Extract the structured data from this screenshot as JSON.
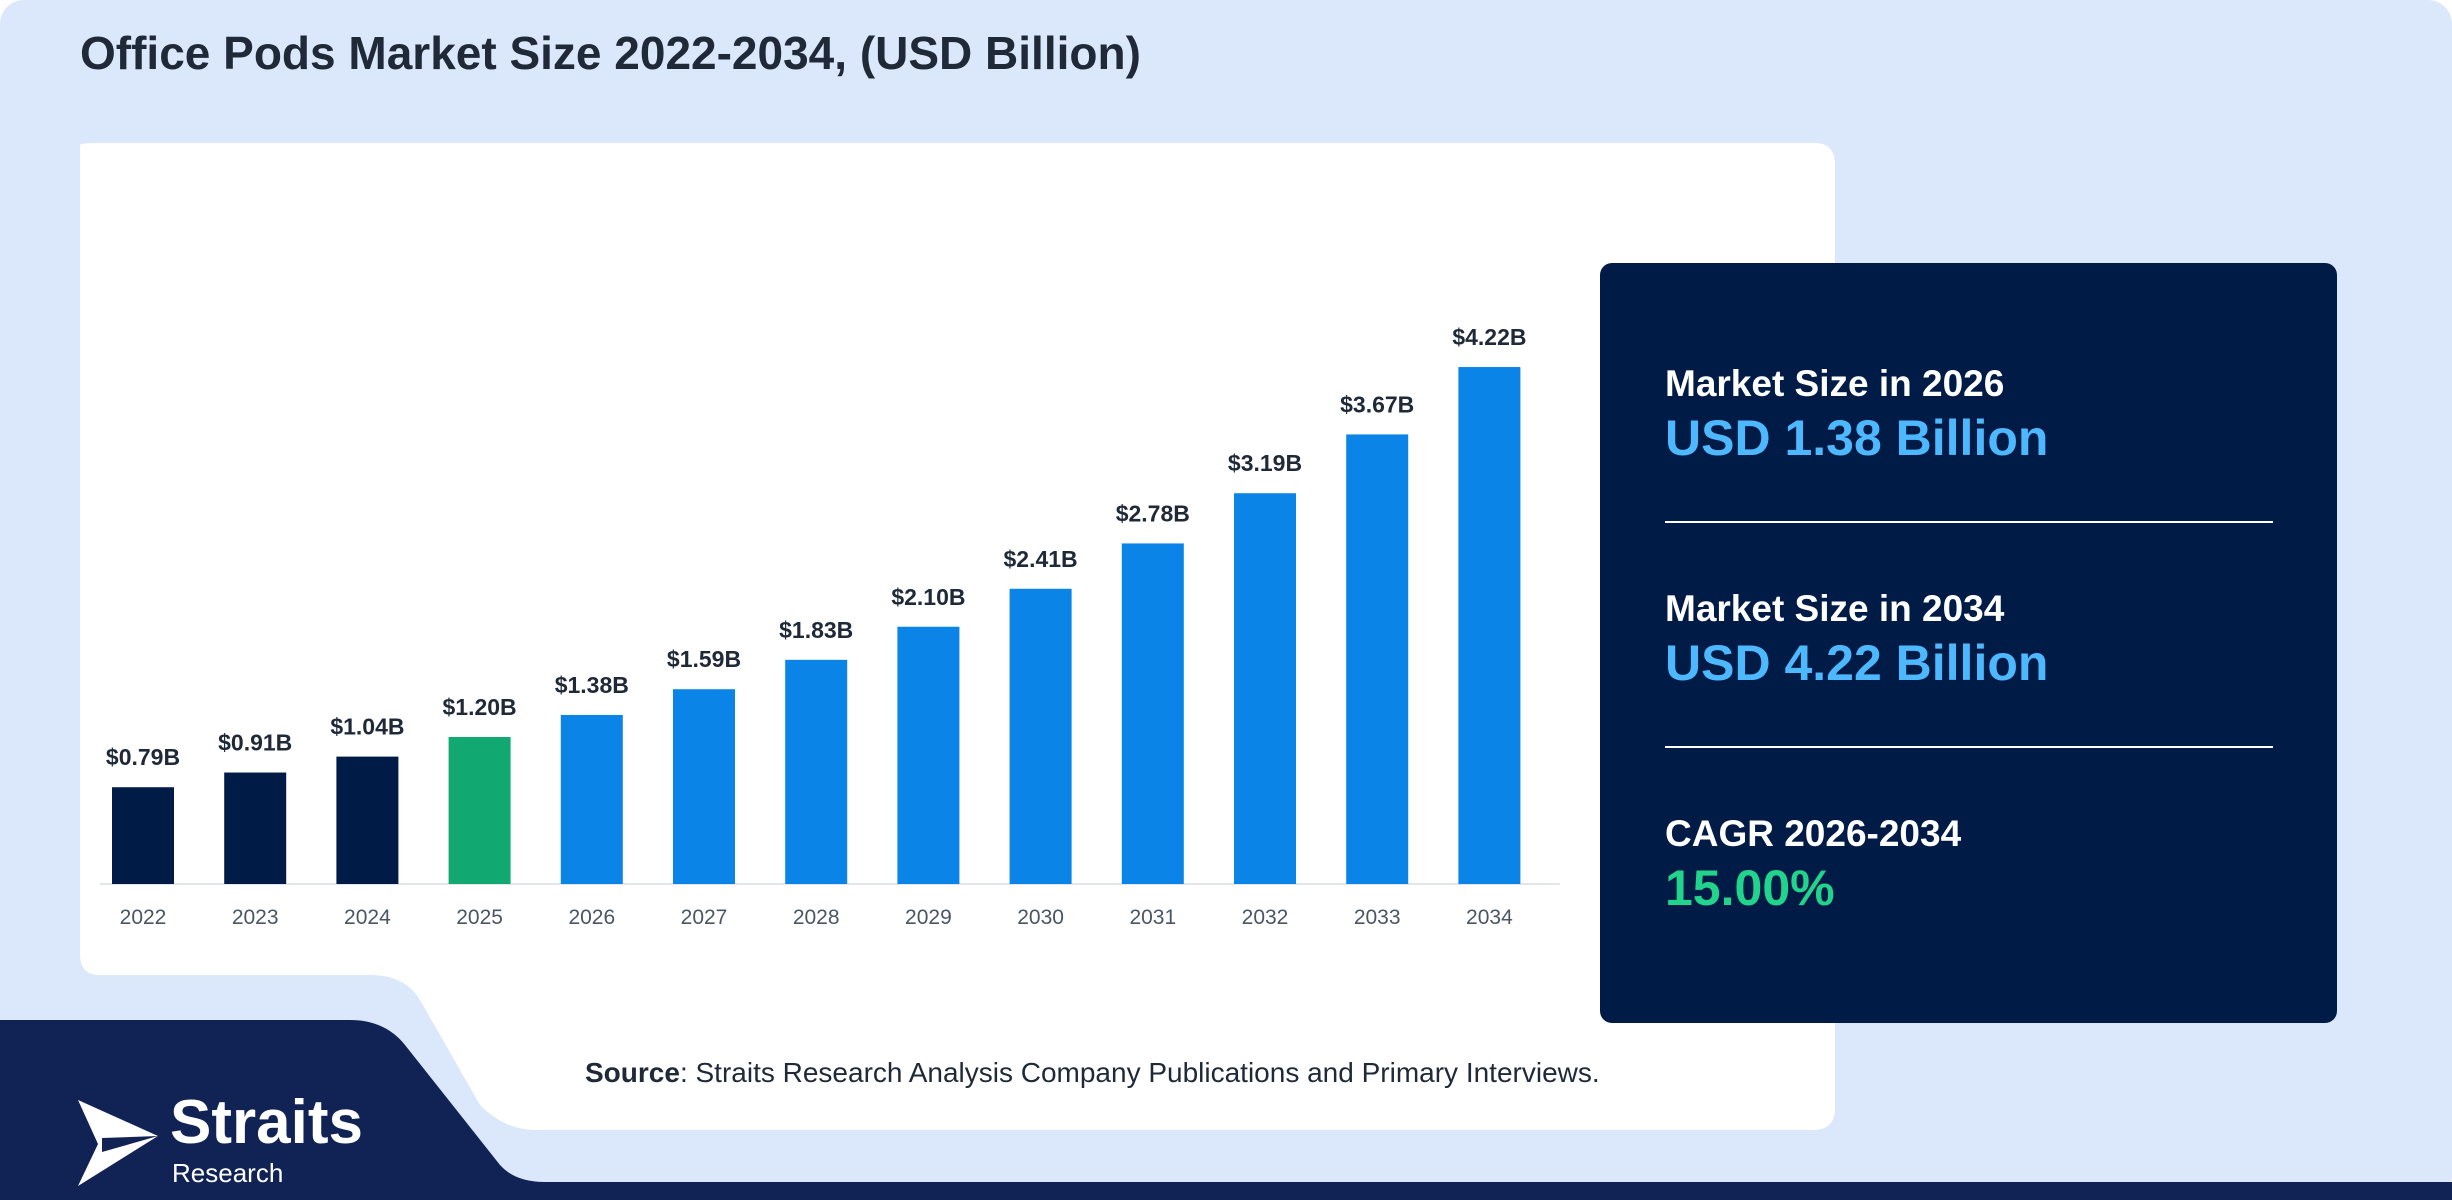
{
  "title": "Office Pods Market Size 2022-2034, (USD Billion)",
  "colors": {
    "background": "#dbe7fa",
    "historical": "#011b47",
    "base_year": "#12a872",
    "forecast": "#0a84e6",
    "panel": "#011b47",
    "value_blue": "#4eb8ff",
    "value_green": "#22d38c"
  },
  "chart_data": {
    "type": "bar",
    "title": "Office Pods Market Size 2022-2034, (USD Billion)",
    "xlabel": "",
    "ylabel": "",
    "ylim": [
      0,
      4.5
    ],
    "grid": false,
    "categories": [
      "2022",
      "2023",
      "2024",
      "2025",
      "2026",
      "2027",
      "2028",
      "2029",
      "2030",
      "2031",
      "2032",
      "2033",
      "2034"
    ],
    "values": [
      0.79,
      0.91,
      1.04,
      1.2,
      1.38,
      1.59,
      1.83,
      2.1,
      2.41,
      2.78,
      3.19,
      3.67,
      4.22
    ],
    "value_labels": [
      "$0.79B",
      "$0.91B",
      "$1.04B",
      "$1.20B",
      "$1.38B",
      "$1.59B",
      "$1.83B",
      "$2.10B",
      "$2.41B",
      "$2.78B",
      "$3.19B",
      "$3.67B",
      "$4.22B"
    ],
    "bar_groups": [
      "historical",
      "historical",
      "historical",
      "base_year",
      "forecast",
      "forecast",
      "forecast",
      "forecast",
      "forecast",
      "forecast",
      "forecast",
      "forecast",
      "forecast"
    ]
  },
  "kpis": [
    {
      "label": "Market Size in 2026",
      "value": "USD 1.38 Billion",
      "color": "#4eb8ff"
    },
    {
      "label": "Market Size in 2034",
      "value": "USD 4.22 Billion",
      "color": "#4eb8ff"
    },
    {
      "label": "CAGR 2026-2034",
      "value": "15.00%",
      "color": "#22d38c"
    }
  ],
  "source": {
    "label": "Source",
    "text": ": Straits Research Analysis Company Publications and Primary Interviews."
  },
  "logo": {
    "name": "Straits",
    "sub": "Research",
    "icon": "straits-arrow-logo-icon"
  }
}
